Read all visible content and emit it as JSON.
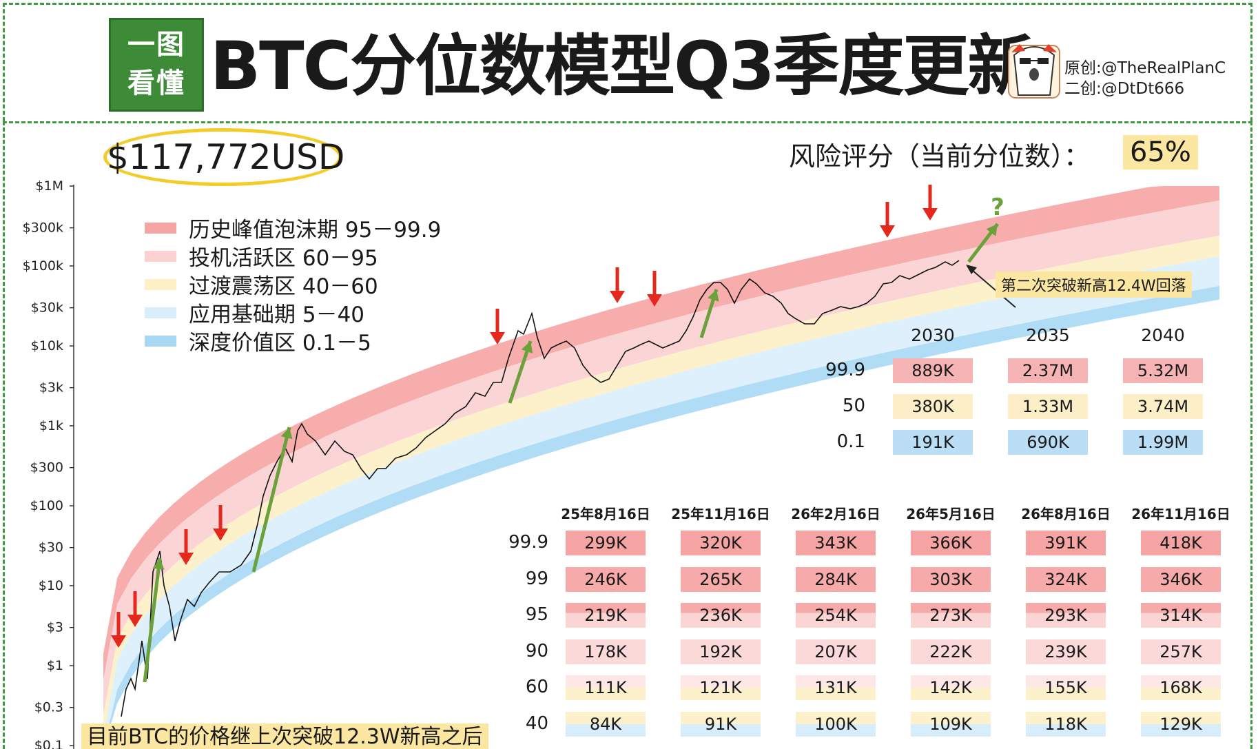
{
  "header": {
    "logo_line1": "一图",
    "logo_line2": "看懂",
    "title": "BTC分位数模型Q3季度更新",
    "credit_original": "原创:@TheRealPlanC",
    "credit_second": "二创:@DtDt666"
  },
  "price_label": "$117,772USD",
  "risk": {
    "label": "风险评分（当前分位数）：",
    "value": "65%"
  },
  "legend": [
    {
      "label": "历史峰值泡沫期 95－99.9",
      "color": "#f7a4a4"
    },
    {
      "label": "投机活跃区 60－95",
      "color": "#fbd0d0"
    },
    {
      "label": "过渡震荡区 40－60",
      "color": "#fdf0c6"
    },
    {
      "label": "应用基础期 5－40",
      "color": "#d9eefb"
    },
    {
      "label": "深度价值区 0.1－5",
      "color": "#a9d8f5"
    }
  ],
  "callout": "第二次突破新高12.4W回落",
  "callout_question": "?",
  "bottom_note": "目前BTC的价格继上次突破12.3W新高之后",
  "colors": {
    "band_9599": "#f7a4a4",
    "band_6095": "#fbd0d0",
    "band_4060": "#fdf0c6",
    "band_540": "#d9eefb",
    "band_015": "#a9d8f5",
    "arrow_red": "#e5281e",
    "arrow_green": "#6aa13a",
    "border_green": "#3f9a3f",
    "highlight": "#fbe7a1"
  },
  "chart_data": {
    "type": "line",
    "yscale": "log",
    "ylim": [
      "$0.1",
      "$1M"
    ],
    "y_ticks": [
      "$1M",
      "$300k",
      "$100k",
      "$30k",
      "$10k",
      "$3k",
      "$1k",
      "$300",
      "$100",
      "$30",
      "$10",
      "$3",
      "$1",
      "$0.3",
      "$0.1"
    ],
    "series": [
      {
        "name": "BTC"
      }
    ],
    "long_term_table": {
      "years": [
        "2030",
        "2035",
        "2040"
      ],
      "rows": [
        {
          "quantile": "99.9",
          "values": [
            "889K",
            "2.37M",
            "5.32M"
          ]
        },
        {
          "quantile": "50",
          "values": [
            "380K",
            "1.33M",
            "3.74M"
          ]
        },
        {
          "quantile": "0.1",
          "values": [
            "191K",
            "690K",
            "1.99M"
          ]
        }
      ]
    },
    "near_term_table": {
      "dates": [
        "25年8月16日",
        "25年11月16日",
        "26年2月16日",
        "26年5月16日",
        "26年8月16日",
        "26年11月16日"
      ],
      "rows": [
        {
          "quantile": "99.9",
          "values": [
            "299K",
            "320K",
            "343K",
            "366K",
            "391K",
            "418K"
          ]
        },
        {
          "quantile": "99",
          "values": [
            "246K",
            "265K",
            "284K",
            "303K",
            "324K",
            "346K"
          ]
        },
        {
          "quantile": "95",
          "values": [
            "219K",
            "236K",
            "254K",
            "273K",
            "293K",
            "314K"
          ]
        },
        {
          "quantile": "90",
          "values": [
            "178K",
            "192K",
            "207K",
            "222K",
            "239K",
            "257K"
          ]
        },
        {
          "quantile": "60",
          "values": [
            "111K",
            "121K",
            "131K",
            "142K",
            "155K",
            "168K"
          ]
        },
        {
          "quantile": "40",
          "values": [
            "84K",
            "91K",
            "100K",
            "109K",
            "118K",
            "129K"
          ]
        }
      ]
    }
  }
}
